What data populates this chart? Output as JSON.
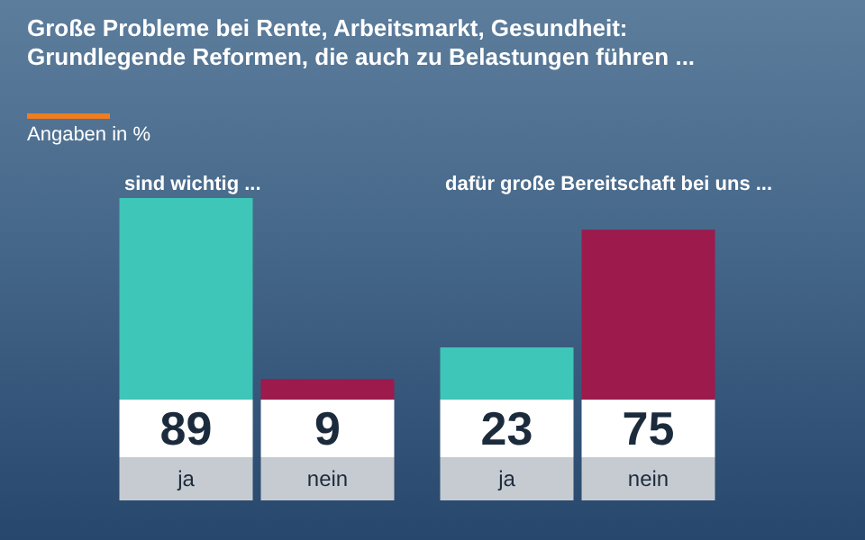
{
  "chart_data": [
    {
      "type": "bar",
      "title": "Große Probleme bei Rente, Arbeitsmarkt, Gesundheit: Grundlegende Reformen, die auch zu Belastungen führen ...",
      "subtitle": "Angaben in %",
      "annotations": [
        "sind wichtig ..."
      ],
      "categories": [
        "ja",
        "nein"
      ],
      "values": [
        89,
        9
      ],
      "colors": [
        "#3ec6b8",
        "#9c1a4c"
      ],
      "data_labels": true
    },
    {
      "type": "bar",
      "annotations": [
        "dafür große Bereitschaft bei uns ..."
      ],
      "categories": [
        "ja",
        "nein"
      ],
      "values": [
        23,
        75
      ],
      "colors": [
        "#3ec6b8",
        "#9c1a4c"
      ],
      "data_labels": true
    }
  ]
}
